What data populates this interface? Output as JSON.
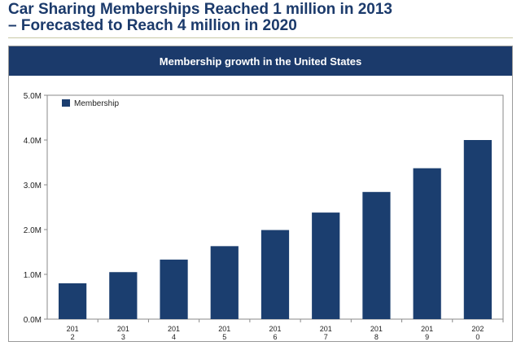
{
  "slide": {
    "title_lines": [
      "Car Sharing Memberships Reached 1 million in 2013",
      "– Forecasted to Reach 4 million in 2020"
    ]
  },
  "colors": {
    "title": "#1b3a6b",
    "header_bg": "#1b3a6b",
    "bar": "#1b3e6f"
  },
  "chart_data": {
    "type": "bar",
    "title": "Membership growth in the United States",
    "xlabel": "",
    "ylabel": "",
    "categories": [
      "2012",
      "2013",
      "2014",
      "2015",
      "2016",
      "2017",
      "2018",
      "2019",
      "2020"
    ],
    "category_tick_labels": [
      [
        "201",
        "2"
      ],
      [
        "201",
        "3"
      ],
      [
        "201",
        "4"
      ],
      [
        "201",
        "5"
      ],
      [
        "201",
        "6"
      ],
      [
        "201",
        "7"
      ],
      [
        "201",
        "8"
      ],
      [
        "201",
        "9"
      ],
      [
        "202",
        "0"
      ]
    ],
    "series": [
      {
        "name": "Membership",
        "values": [
          0.8,
          1.05,
          1.33,
          1.63,
          1.99,
          2.38,
          2.84,
          3.37,
          4.0
        ]
      }
    ],
    "ylim": [
      0,
      5
    ],
    "yticks": [
      0,
      1,
      2,
      3,
      4,
      5
    ],
    "ytick_labels": [
      "0.0M",
      "1.0M",
      "2.0M",
      "3.0M",
      "4.0M",
      "5.0M"
    ],
    "grid": false,
    "legend": {
      "position": "top-left",
      "entries": [
        "Membership"
      ]
    }
  }
}
